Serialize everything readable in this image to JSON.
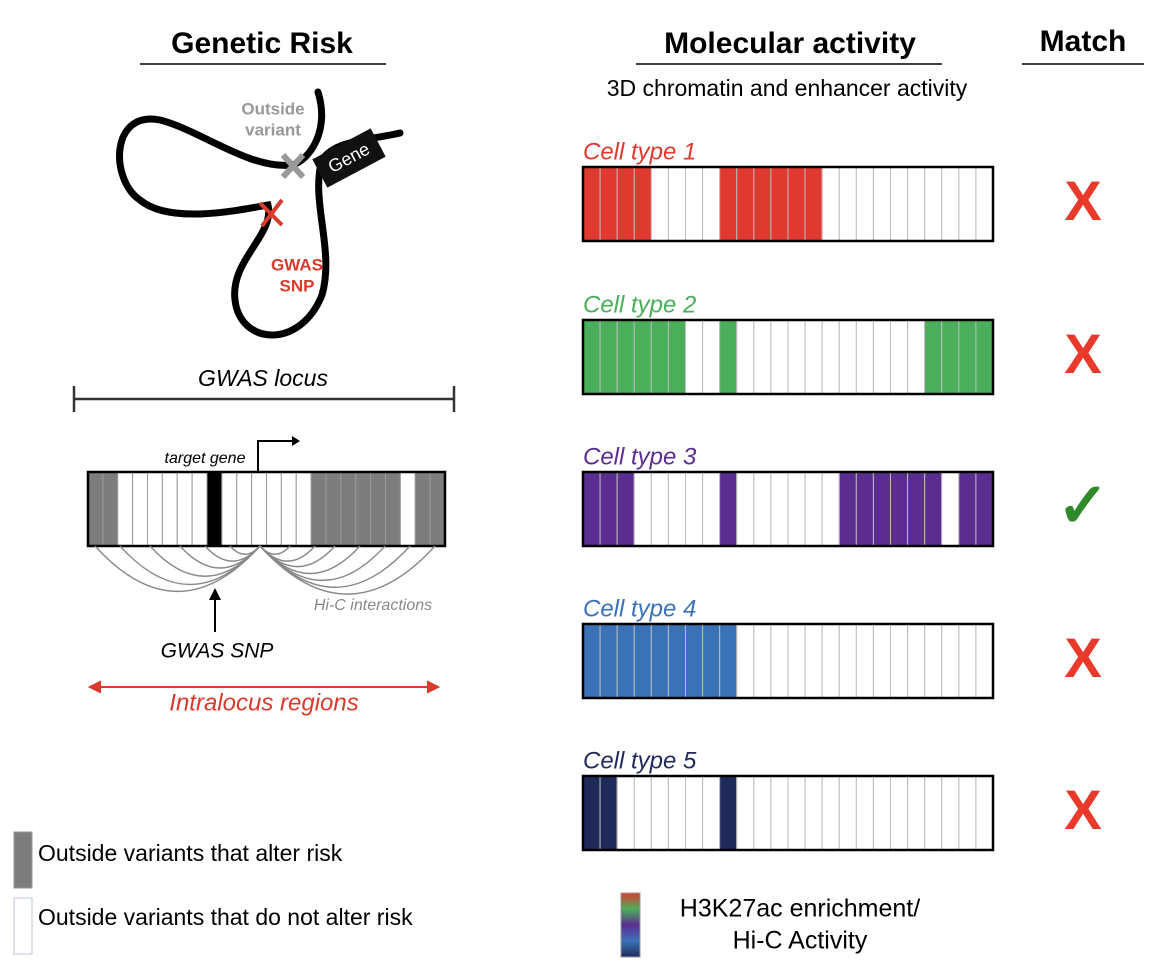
{
  "left": {
    "title": "Genetic Risk",
    "outside_variant": [
      "Outside",
      "variant"
    ],
    "gene": "Gene",
    "gwas_snp_loop": [
      "GWAS",
      "SNP"
    ],
    "locus": "GWAS locus",
    "target_gene": "target gene",
    "hic": "Hi-C interactions",
    "gwas_snp": "GWAS SNP",
    "intralocus": "Intralocus regions",
    "legend": [
      "Outside variants that alter risk",
      "Outside variants that do not alter risk"
    ]
  },
  "middle": {
    "title": "Molecular activity",
    "subtitle": "3D chromatin and enhancer activity",
    "cells": [
      {
        "name": "Cell type 1",
        "color": "#e03a30"
      },
      {
        "name": "Cell type 2",
        "color": "#4aae5a"
      },
      {
        "name": "Cell type 3",
        "color": "#5b2d91"
      },
      {
        "name": "Cell type 4",
        "color": "#3a72b8"
      },
      {
        "name": "Cell type 5",
        "color": "#1f2a5a"
      }
    ],
    "legend": [
      "H3K27ac enrichment/",
      "Hi-C Activity"
    ]
  },
  "match": {
    "title": "Match",
    "marks": [
      "X",
      "X",
      "✓",
      "X",
      "X"
    ]
  }
}
